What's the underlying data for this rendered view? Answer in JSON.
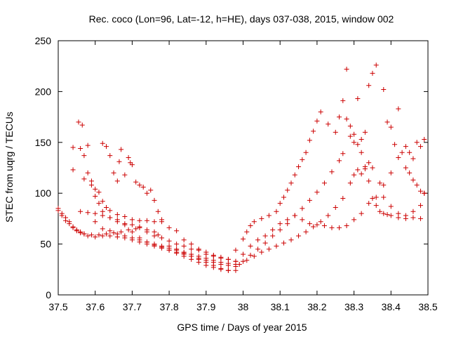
{
  "chart_data": {
    "type": "scatter",
    "title": "Rec. coco (Lon=96, Lat=-12, h=HE), days 037-038, 2015, window 002",
    "xlabel": "GPS time / Days of year 2015",
    "ylabel": "STEC from uqrg / TECUs",
    "xlim": [
      37.5,
      38.5
    ],
    "ylim": [
      0,
      250
    ],
    "x_ticks": [
      "37.5",
      "37.6",
      "37.7",
      "37.8",
      "37.9",
      "38",
      "38.1",
      "38.2",
      "38.3",
      "38.4",
      "38.5"
    ],
    "y_ticks": [
      "0",
      "50",
      "100",
      "150",
      "200",
      "250"
    ],
    "grid": false,
    "legend": "none",
    "marker": "+",
    "color": "#cc0000",
    "series": [
      {
        "points": [
          [
            37.5,
            85
          ],
          [
            37.51,
            78
          ],
          [
            37.52,
            73
          ],
          [
            37.53,
            70
          ],
          [
            37.54,
            66
          ],
          [
            37.55,
            63
          ],
          [
            37.56,
            61
          ],
          [
            37.57,
            60
          ],
          [
            37.59,
            59
          ],
          [
            37.61,
            59
          ],
          [
            37.63,
            60
          ],
          [
            37.65,
            61
          ],
          [
            37.67,
            62
          ],
          [
            37.69,
            64
          ],
          [
            37.71,
            65
          ],
          [
            37.72,
            67
          ],
          [
            37.74,
            64
          ],
          [
            37.76,
            62
          ],
          [
            37.77,
            59
          ]
        ]
      },
      {
        "points": [
          [
            37.5,
            83
          ],
          [
            37.51,
            80
          ],
          [
            37.52,
            76
          ],
          [
            37.53,
            72
          ],
          [
            37.54,
            67
          ],
          [
            37.55,
            64
          ],
          [
            37.56,
            62
          ],
          [
            37.57,
            60
          ],
          [
            37.58,
            58
          ],
          [
            37.6,
            57
          ],
          [
            37.62,
            58
          ],
          [
            37.64,
            58
          ],
          [
            37.66,
            57
          ],
          [
            37.68,
            56
          ],
          [
            37.7,
            54
          ],
          [
            37.72,
            52
          ],
          [
            37.74,
            50
          ],
          [
            37.76,
            48
          ],
          [
            37.78,
            46
          ],
          [
            37.8,
            44
          ],
          [
            37.82,
            42
          ],
          [
            37.84,
            40
          ],
          [
            37.86,
            38
          ],
          [
            37.88,
            36
          ],
          [
            37.9,
            34
          ],
          [
            37.92,
            32
          ],
          [
            37.94,
            30
          ],
          [
            37.96,
            29
          ],
          [
            37.98,
            28
          ]
        ]
      },
      {
        "points": [
          [
            37.54,
            145
          ],
          [
            37.56,
            144
          ],
          [
            37.57,
            137
          ],
          [
            37.58,
            120
          ],
          [
            37.59,
            108
          ],
          [
            37.6,
            97
          ],
          [
            37.61,
            90
          ],
          [
            37.62,
            82
          ],
          [
            37.64,
            76
          ],
          [
            37.66,
            72
          ],
          [
            37.68,
            70
          ],
          [
            37.7,
            69
          ],
          [
            37.72,
            66
          ],
          [
            37.74,
            62
          ],
          [
            37.76,
            58
          ],
          [
            37.78,
            56
          ],
          [
            37.8,
            53
          ],
          [
            37.82,
            50
          ],
          [
            37.84,
            48
          ],
          [
            37.86,
            45
          ],
          [
            37.88,
            44
          ],
          [
            37.9,
            40
          ],
          [
            37.92,
            38
          ],
          [
            37.94,
            36
          ],
          [
            37.96,
            35
          ],
          [
            37.98,
            33
          ]
        ]
      },
      {
        "points": [
          [
            37.54,
            123
          ],
          [
            37.555,
            170
          ],
          [
            37.565,
            167
          ],
          [
            37.57,
            114
          ],
          [
            37.58,
            147
          ],
          [
            37.59,
            112
          ],
          [
            37.6,
            104
          ],
          [
            37.61,
            101
          ],
          [
            37.62,
            92
          ],
          [
            37.63,
            86
          ],
          [
            37.64,
            83
          ],
          [
            37.66,
            79
          ],
          [
            37.68,
            77
          ],
          [
            37.7,
            74
          ],
          [
            37.72,
            73
          ],
          [
            37.74,
            73
          ],
          [
            37.76,
            72
          ],
          [
            37.78,
            72
          ],
          [
            37.8,
            48
          ],
          [
            37.82,
            45
          ],
          [
            37.84,
            42
          ],
          [
            37.86,
            40
          ],
          [
            37.88,
            38
          ],
          [
            37.9,
            36
          ],
          [
            37.92,
            34
          ],
          [
            37.94,
            32
          ],
          [
            37.96,
            31
          ],
          [
            37.98,
            30
          ]
        ]
      },
      {
        "points": [
          [
            37.56,
            82
          ],
          [
            37.58,
            81
          ],
          [
            37.6,
            80
          ],
          [
            37.62,
            78
          ],
          [
            37.64,
            76
          ],
          [
            37.66,
            74
          ],
          [
            37.68,
            69
          ],
          [
            37.7,
            62
          ],
          [
            37.72,
            56
          ],
          [
            37.74,
            52
          ],
          [
            37.76,
            49
          ],
          [
            37.78,
            47
          ],
          [
            37.8,
            44
          ],
          [
            37.82,
            41
          ],
          [
            37.84,
            38
          ],
          [
            37.86,
            35
          ],
          [
            37.88,
            32
          ],
          [
            37.9,
            29
          ],
          [
            37.92,
            27
          ],
          [
            37.94,
            25
          ],
          [
            37.96,
            24
          ],
          [
            37.98,
            24
          ]
        ]
      },
      {
        "points": [
          [
            37.62,
            149
          ],
          [
            37.63,
            146
          ],
          [
            37.64,
            137
          ],
          [
            37.65,
            120
          ],
          [
            37.66,
            112
          ],
          [
            37.665,
            131
          ],
          [
            37.67,
            143
          ],
          [
            37.68,
            118
          ],
          [
            37.69,
            135
          ],
          [
            37.695,
            130
          ],
          [
            37.7,
            128
          ],
          [
            37.71,
            111
          ],
          [
            37.72,
            108
          ],
          [
            37.73,
            106
          ],
          [
            37.74,
            100
          ],
          [
            37.75,
            103
          ],
          [
            37.76,
            93
          ],
          [
            37.77,
            82
          ],
          [
            37.78,
            74
          ],
          [
            37.8,
            66
          ],
          [
            37.82,
            63
          ],
          [
            37.84,
            54
          ],
          [
            37.86,
            50
          ],
          [
            37.88,
            45
          ],
          [
            37.9,
            42
          ],
          [
            37.92,
            39
          ],
          [
            37.94,
            37
          ],
          [
            37.96,
            35
          ],
          [
            37.98,
            33
          ]
        ]
      },
      {
        "points": [
          [
            37.6,
            72
          ],
          [
            37.62,
            65
          ],
          [
            37.64,
            63
          ],
          [
            37.66,
            60
          ],
          [
            37.68,
            58
          ],
          [
            37.7,
            56
          ],
          [
            37.72,
            54
          ],
          [
            37.74,
            52
          ],
          [
            37.76,
            50
          ],
          [
            37.78,
            48
          ],
          [
            37.8,
            46
          ],
          [
            37.82,
            44
          ],
          [
            37.84,
            41
          ],
          [
            37.86,
            38
          ],
          [
            37.88,
            35
          ],
          [
            37.9,
            32
          ],
          [
            37.92,
            29
          ],
          [
            37.94,
            26
          ],
          [
            37.96,
            24
          ]
        ]
      },
      {
        "points": [
          [
            37.98,
            44
          ],
          [
            38.0,
            55
          ],
          [
            38.01,
            62
          ],
          [
            38.02,
            68
          ],
          [
            38.03,
            72
          ],
          [
            38.05,
            75
          ],
          [
            38.07,
            78
          ],
          [
            38.09,
            82
          ],
          [
            38.1,
            90
          ],
          [
            38.11,
            96
          ],
          [
            38.12,
            103
          ],
          [
            38.13,
            110
          ],
          [
            38.14,
            118
          ],
          [
            38.15,
            126
          ],
          [
            38.16,
            133
          ],
          [
            38.17,
            140
          ],
          [
            38.18,
            152
          ],
          [
            38.19,
            161
          ],
          [
            38.2,
            171
          ],
          [
            38.21,
            180
          ],
          [
            38.23,
            168
          ],
          [
            38.25,
            160
          ],
          [
            38.26,
            175
          ],
          [
            38.27,
            191
          ],
          [
            38.28,
            173
          ],
          [
            38.29,
            166
          ],
          [
            38.3,
            158
          ],
          [
            38.31,
            148
          ],
          [
            38.32,
            140
          ],
          [
            38.33,
            124
          ],
          [
            38.34,
            112
          ],
          [
            38.35,
            95
          ],
          [
            38.36,
            88
          ],
          [
            38.37,
            82
          ],
          [
            38.38,
            80
          ],
          [
            38.39,
            79
          ],
          [
            38.4,
            78
          ],
          [
            38.42,
            76
          ],
          [
            38.44,
            75
          ],
          [
            38.46,
            76
          ],
          [
            38.48,
            75
          ]
        ]
      },
      {
        "points": [
          [
            38.0,
            33
          ],
          [
            38.02,
            39
          ],
          [
            38.04,
            45
          ],
          [
            38.06,
            51
          ],
          [
            38.08,
            58
          ],
          [
            38.1,
            64
          ],
          [
            38.12,
            70
          ],
          [
            38.14,
            78
          ],
          [
            38.16,
            85
          ],
          [
            38.18,
            93
          ],
          [
            38.2,
            101
          ],
          [
            38.22,
            110
          ],
          [
            38.24,
            121
          ],
          [
            38.26,
            132
          ],
          [
            38.27,
            139
          ],
          [
            38.28,
            222
          ],
          [
            38.29,
            156
          ],
          [
            38.3,
            150
          ],
          [
            38.31,
            193
          ],
          [
            38.32,
            153
          ],
          [
            38.33,
            160
          ],
          [
            38.34,
            206
          ],
          [
            38.35,
            218
          ],
          [
            38.36,
            226
          ],
          [
            38.38,
            202
          ],
          [
            38.39,
            170
          ],
          [
            38.4,
            165
          ],
          [
            38.41,
            148
          ],
          [
            38.42,
            183
          ],
          [
            38.43,
            140
          ],
          [
            38.44,
            125
          ],
          [
            38.45,
            120
          ],
          [
            38.46,
            113
          ],
          [
            38.47,
            108
          ],
          [
            38.48,
            102
          ],
          [
            38.49,
            100
          ]
        ]
      },
      {
        "points": [
          [
            37.99,
            30
          ],
          [
            38.01,
            34
          ],
          [
            38.03,
            38
          ],
          [
            38.05,
            42
          ],
          [
            38.07,
            45
          ],
          [
            38.09,
            48
          ],
          [
            38.11,
            51
          ],
          [
            38.13,
            54
          ],
          [
            38.15,
            58
          ],
          [
            38.17,
            62
          ],
          [
            38.19,
            67
          ],
          [
            38.21,
            72
          ],
          [
            38.23,
            78
          ],
          [
            38.25,
            86
          ],
          [
            38.27,
            95
          ],
          [
            38.29,
            110
          ],
          [
            38.3,
            118
          ],
          [
            38.31,
            123
          ],
          [
            38.32,
            119
          ],
          [
            38.33,
            126
          ],
          [
            38.34,
            130
          ],
          [
            38.35,
            125
          ],
          [
            38.37,
            110
          ],
          [
            38.38,
            96
          ],
          [
            38.4,
            87
          ],
          [
            38.42,
            80
          ],
          [
            38.44,
            78
          ],
          [
            38.46,
            82
          ],
          [
            38.48,
            88
          ],
          [
            38.49,
            100
          ]
        ]
      },
      {
        "points": [
          [
            38.0,
            40
          ],
          [
            38.02,
            48
          ],
          [
            38.04,
            54
          ],
          [
            38.06,
            58
          ],
          [
            38.08,
            64
          ],
          [
            38.1,
            70
          ],
          [
            38.12,
            74
          ],
          [
            38.14,
            78
          ],
          [
            38.16,
            74
          ],
          [
            38.18,
            70
          ],
          [
            38.2,
            69
          ],
          [
            38.22,
            68
          ],
          [
            38.24,
            66
          ],
          [
            38.26,
            66
          ],
          [
            38.28,
            68
          ],
          [
            38.3,
            74
          ],
          [
            38.32,
            80
          ],
          [
            38.34,
            90
          ],
          [
            38.36,
            96
          ],
          [
            38.38,
            108
          ],
          [
            38.4,
            120
          ],
          [
            38.42,
            135
          ],
          [
            38.44,
            146
          ],
          [
            38.45,
            140
          ],
          [
            38.46,
            134
          ],
          [
            38.47,
            150
          ],
          [
            38.48,
            146
          ],
          [
            38.49,
            153
          ]
        ]
      }
    ]
  }
}
